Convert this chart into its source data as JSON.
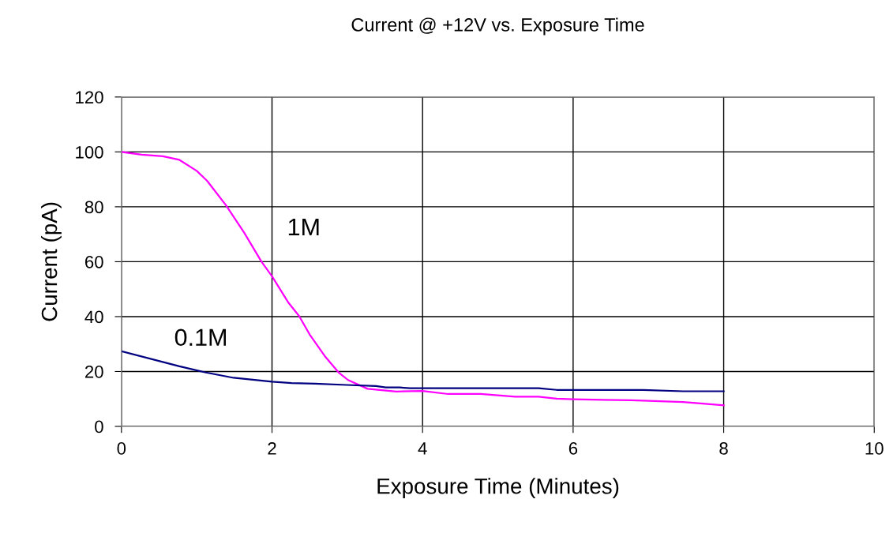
{
  "chart_data": {
    "type": "line",
    "title": "Current @ +12V vs. Exposure Time",
    "xlabel": "Exposure Time (Minutes)",
    "ylabel": "Current (pA)",
    "xlim": [
      0,
      10
    ],
    "xticks": [
      0,
      2,
      4,
      6,
      8,
      10
    ],
    "ylim": [
      0,
      120
    ],
    "yticks": [
      0,
      20,
      40,
      60,
      80,
      100,
      120
    ],
    "grid": true,
    "legend": false,
    "marker": "none",
    "line_style": "solid",
    "series": [
      {
        "name": "1M",
        "color": "#ff00ff",
        "x": [
          0,
          0.27,
          0.55,
          0.77,
          1.0,
          1.14,
          1.39,
          1.63,
          1.86,
          2.0,
          2.22,
          2.36,
          2.5,
          2.71,
          2.89,
          3.01,
          3.27,
          3.65,
          4.0,
          4.34,
          4.77,
          5.23,
          5.54,
          5.78,
          6.0,
          6.77,
          7.46,
          8.0
        ],
        "values": [
          100,
          99,
          98.4,
          97.1,
          93.1,
          89.4,
          80.5,
          70.6,
          60,
          54.7,
          45,
          40.2,
          33.5,
          25.3,
          19.5,
          16.9,
          13.7,
          12.7,
          12.9,
          11.8,
          11.8,
          10.8,
          10.8,
          10.1,
          9.9,
          9.5,
          8.9,
          7.7
        ]
      },
      {
        "name": "0.1M",
        "color": "#000080",
        "x": [
          0,
          0.77,
          1.11,
          1.49,
          2.0,
          2.26,
          2.57,
          2.99,
          3.38,
          3.51,
          3.69,
          3.83,
          3.98,
          5.54,
          5.78,
          6.93,
          7.46,
          8.0
        ],
        "values": [
          27.4,
          21.9,
          19.7,
          17.7,
          16.3,
          15.8,
          15.6,
          15.1,
          14.7,
          14.2,
          14.2,
          13.9,
          13.9,
          13.9,
          13.3,
          13.3,
          12.8,
          12.8
        ]
      }
    ]
  }
}
